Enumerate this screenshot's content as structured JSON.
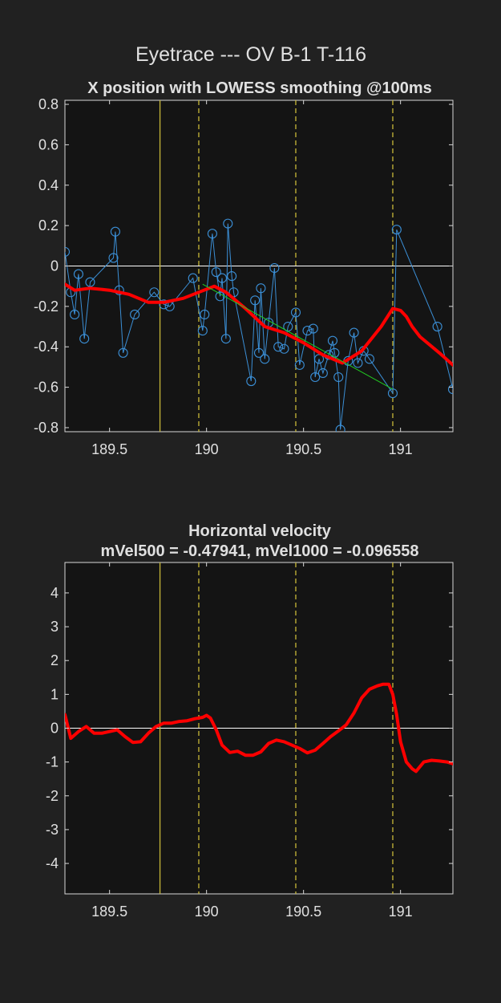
{
  "figure_title": "Eyetrace --- OV B-1 T-116",
  "colors": {
    "background": "#212121",
    "axes_bg": "#141414",
    "text": "#e0e0e0",
    "samples": "#3b8fd6",
    "smooth": "#ff0000",
    "fit": "#22cc22",
    "event": "#c8b838",
    "zero_line": "#ffffff"
  },
  "chart_data": [
    {
      "type": "line",
      "title": "X position with LOWESS smoothing @100ms",
      "xlabel": "",
      "ylabel": "",
      "xlim": [
        189.27,
        191.27
      ],
      "ylim": [
        -0.82,
        0.82
      ],
      "xticks": [
        189.5,
        190,
        190.5,
        191
      ],
      "xtick_labels": [
        "189.5",
        "190",
        "190.5",
        "191"
      ],
      "yticks": [
        0.8,
        0.6,
        0.4,
        0.2,
        0,
        -0.2,
        -0.4,
        -0.6,
        -0.8
      ],
      "ytick_labels": [
        "0.8",
        "0.6",
        "0.4",
        "0.2",
        "0",
        "-0.2",
        "-0.4",
        "-0.6",
        "-0.8"
      ],
      "grid": false,
      "vlines": [
        {
          "x": 189.76,
          "style": "solid"
        },
        {
          "x": 189.96,
          "style": "dashed"
        },
        {
          "x": 190.46,
          "style": "dashed"
        },
        {
          "x": 190.96,
          "style": "dashed"
        }
      ],
      "series": [
        {
          "kind": "samples",
          "x": [
            189.27,
            189.3,
            189.32,
            189.34,
            189.37,
            189.4,
            189.52,
            189.53,
            189.55,
            189.57,
            189.63,
            189.73,
            189.78,
            189.81,
            189.93,
            189.98,
            189.99,
            190.03,
            190.05,
            190.07,
            190.08,
            190.1,
            190.11,
            190.13,
            190.14,
            190.23,
            190.25,
            190.27,
            190.28,
            190.3,
            190.32,
            190.35,
            190.37,
            190.4,
            190.42,
            190.46,
            190.48,
            190.52,
            190.55,
            190.56,
            190.58,
            190.6,
            190.63,
            190.65,
            190.66,
            190.68,
            190.69,
            190.73,
            190.76,
            190.78,
            190.81,
            190.84,
            190.96,
            190.98,
            191.19,
            191.27
          ],
          "y": [
            0.07,
            -0.13,
            -0.24,
            -0.04,
            -0.36,
            -0.08,
            0.04,
            0.17,
            -0.12,
            -0.43,
            -0.24,
            -0.13,
            -0.19,
            -0.2,
            -0.06,
            -0.32,
            -0.24,
            0.16,
            -0.03,
            -0.15,
            -0.06,
            -0.36,
            0.21,
            -0.05,
            -0.13,
            -0.57,
            -0.17,
            -0.43,
            -0.11,
            -0.46,
            -0.28,
            -0.01,
            -0.4,
            -0.41,
            -0.3,
            -0.23,
            -0.49,
            -0.32,
            -0.31,
            -0.55,
            -0.46,
            -0.53,
            -0.44,
            -0.37,
            -0.43,
            -0.55,
            -0.81,
            -0.47,
            -0.33,
            -0.48,
            -0.42,
            -0.46,
            -0.63,
            0.18,
            -0.3,
            -0.61
          ]
        },
        {
          "kind": "smooth",
          "x": [
            189.27,
            189.32,
            189.4,
            189.5,
            189.6,
            189.7,
            189.78,
            189.88,
            189.96,
            190.04,
            190.1,
            190.2,
            190.3,
            190.4,
            190.5,
            190.6,
            190.7,
            190.8,
            190.9,
            190.96,
            191.0,
            191.03,
            191.06,
            191.1,
            191.2,
            191.27
          ],
          "y": [
            -0.09,
            -0.12,
            -0.11,
            -0.12,
            -0.14,
            -0.18,
            -0.18,
            -0.16,
            -0.13,
            -0.1,
            -0.13,
            -0.21,
            -0.3,
            -0.33,
            -0.38,
            -0.44,
            -0.48,
            -0.42,
            -0.3,
            -0.21,
            -0.22,
            -0.25,
            -0.3,
            -0.35,
            -0.43,
            -0.49
          ]
        },
        {
          "kind": "fit",
          "x": [
            189.98,
            190.96
          ],
          "y": [
            -0.09,
            -0.61
          ]
        }
      ]
    },
    {
      "type": "line",
      "title": "Horizontal velocity",
      "subtitle": "mVel500 = -0.47941, mVel1000 = -0.096558",
      "xlabel": "",
      "ylabel": "",
      "xlim": [
        189.27,
        191.27
      ],
      "ylim": [
        -4.9,
        4.9
      ],
      "xticks": [
        189.5,
        190,
        190.5,
        191
      ],
      "xtick_labels": [
        "189.5",
        "190",
        "190.5",
        "191"
      ],
      "yticks": [
        4,
        3,
        2,
        1,
        0,
        -1,
        -2,
        -3,
        -4
      ],
      "ytick_labels": [
        "4",
        "3",
        "2",
        "1",
        "0",
        "-1",
        "-2",
        "-3",
        "-4"
      ],
      "grid": false,
      "vlines": [
        {
          "x": 189.76,
          "style": "solid"
        },
        {
          "x": 189.96,
          "style": "dashed"
        },
        {
          "x": 190.46,
          "style": "dashed"
        },
        {
          "x": 190.96,
          "style": "dashed"
        }
      ],
      "series": [
        {
          "kind": "smooth",
          "x": [
            189.27,
            189.3,
            189.34,
            189.38,
            189.42,
            189.46,
            189.5,
            189.54,
            189.58,
            189.62,
            189.66,
            189.7,
            189.74,
            189.78,
            189.82,
            189.86,
            189.9,
            189.94,
            189.98,
            190.0,
            190.02,
            190.05,
            190.08,
            190.12,
            190.16,
            190.2,
            190.24,
            190.28,
            190.32,
            190.36,
            190.4,
            190.44,
            190.48,
            190.52,
            190.56,
            190.6,
            190.64,
            190.68,
            190.72,
            190.76,
            190.8,
            190.84,
            190.88,
            190.91,
            190.94,
            190.96,
            190.98,
            191.0,
            191.03,
            191.06,
            191.08,
            191.12,
            191.16,
            191.2,
            191.24,
            191.27
          ],
          "y": [
            0.4,
            -0.3,
            -0.1,
            0.05,
            -0.15,
            -0.15,
            -0.1,
            -0.05,
            -0.25,
            -0.42,
            -0.4,
            -0.15,
            0.05,
            0.15,
            0.15,
            0.2,
            0.22,
            0.28,
            0.32,
            0.38,
            0.3,
            -0.05,
            -0.5,
            -0.72,
            -0.68,
            -0.8,
            -0.8,
            -0.7,
            -0.45,
            -0.35,
            -0.4,
            -0.5,
            -0.6,
            -0.73,
            -0.65,
            -0.45,
            -0.25,
            -0.08,
            0.1,
            0.45,
            0.9,
            1.15,
            1.25,
            1.3,
            1.3,
            1.0,
            0.4,
            -0.4,
            -1.0,
            -1.2,
            -1.28,
            -1.0,
            -0.95,
            -0.97,
            -1.0,
            -1.05
          ]
        }
      ]
    }
  ]
}
